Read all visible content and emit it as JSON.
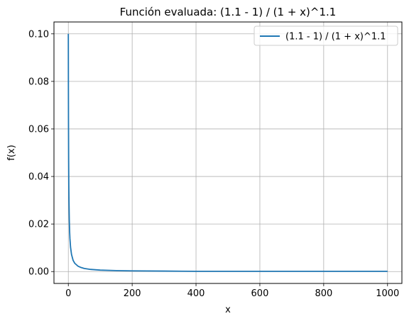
{
  "chart_data": {
    "type": "line",
    "title": "Función evaluada: (1.1 - 1) / (1 + x)^1.1",
    "xlabel": "x",
    "ylabel": "f(x)",
    "xlim": [
      -45,
      1045
    ],
    "ylim": [
      -0.005,
      0.105
    ],
    "xticks": [
      0,
      200,
      400,
      600,
      800,
      1000
    ],
    "xtick_labels": [
      "0",
      "200",
      "400",
      "600",
      "800",
      "1000"
    ],
    "yticks": [
      0.0,
      0.02,
      0.04,
      0.06,
      0.08,
      0.1
    ],
    "ytick_labels": [
      "0.00",
      "0.02",
      "0.04",
      "0.06",
      "0.08",
      "0.10"
    ],
    "grid": true,
    "legend_position": "top-right",
    "series": [
      {
        "name": "(1.1 - 1) / (1 + x)^1.1",
        "color": "#1f77b4",
        "x": [
          0,
          0.25,
          0.5,
          1,
          1.5,
          2,
          3,
          4,
          5,
          7,
          10,
          15,
          20,
          30,
          40,
          50,
          70,
          100,
          150,
          200,
          300,
          400,
          500,
          600,
          700,
          800,
          900,
          1000
        ],
        "y": [
          0.1,
          0.0782,
          0.064,
          0.0467,
          0.0365,
          0.0299,
          0.0218,
          0.017,
          0.0139,
          0.0102,
          0.0072,
          0.0047,
          0.0035,
          0.0023,
          0.0017,
          0.0013,
          0.0009,
          0.0006,
          0.0004,
          0.0003,
          0.0002,
          0.0001,
          0.0001,
          0.0001,
          0.0001,
          0.0001,
          0.0001,
          0.0001
        ]
      }
    ]
  }
}
